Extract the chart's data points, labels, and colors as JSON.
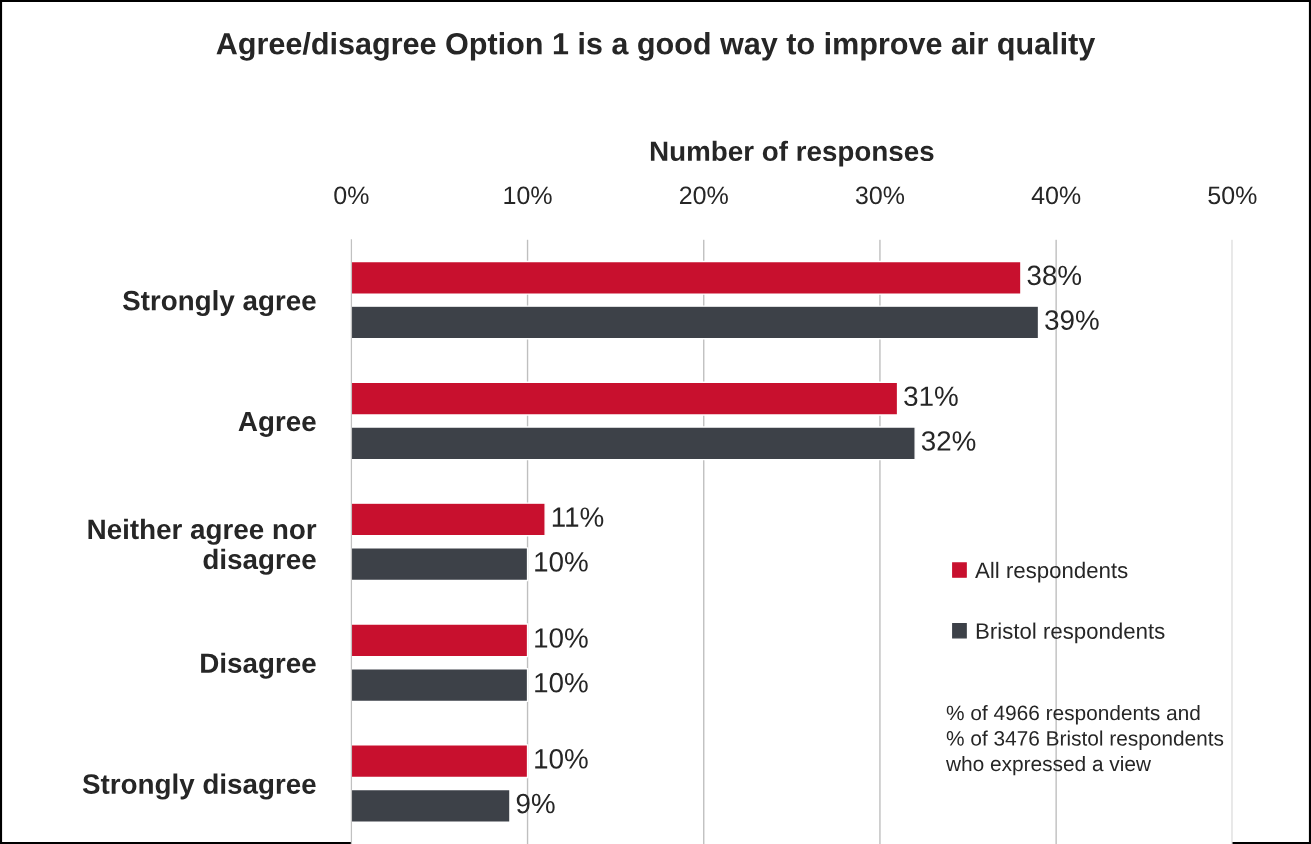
{
  "chart_data": {
    "type": "bar",
    "orientation": "horizontal",
    "title": "Agree/disagree Option 1 is a good way to improve air quality",
    "xlabel": "Number of responses",
    "categories": [
      "Strongly agree",
      "Agree",
      "Neither agree nor disagree",
      "Disagree",
      "Strongly disagree"
    ],
    "series": [
      {
        "name": "All respondents",
        "color": "#c8102e",
        "values": [
          38,
          31,
          11,
          10,
          10
        ],
        "value_labels": [
          "38%",
          "31%",
          "11%",
          "10%",
          "10%"
        ]
      },
      {
        "name": "Bristol respondents",
        "color": "#3d4148",
        "values": [
          39,
          32,
          10,
          10,
          9
        ],
        "value_labels": [
          "39%",
          "32%",
          "10%",
          "10%",
          "9%"
        ]
      }
    ],
    "xlim": [
      0,
      50
    ],
    "xticks": [
      {
        "value": 0,
        "label": "0%"
      },
      {
        "value": 10,
        "label": "10%"
      },
      {
        "value": 20,
        "label": "20%"
      },
      {
        "value": 30,
        "label": "30%"
      },
      {
        "value": 40,
        "label": "40%"
      },
      {
        "value": 50,
        "label": "50%"
      }
    ],
    "grid": "x",
    "legend": "bottom right",
    "annotations": [
      "% of 4966 respondents and\n% of 3476 Bristol respondents\nwho expressed a view"
    ]
  }
}
